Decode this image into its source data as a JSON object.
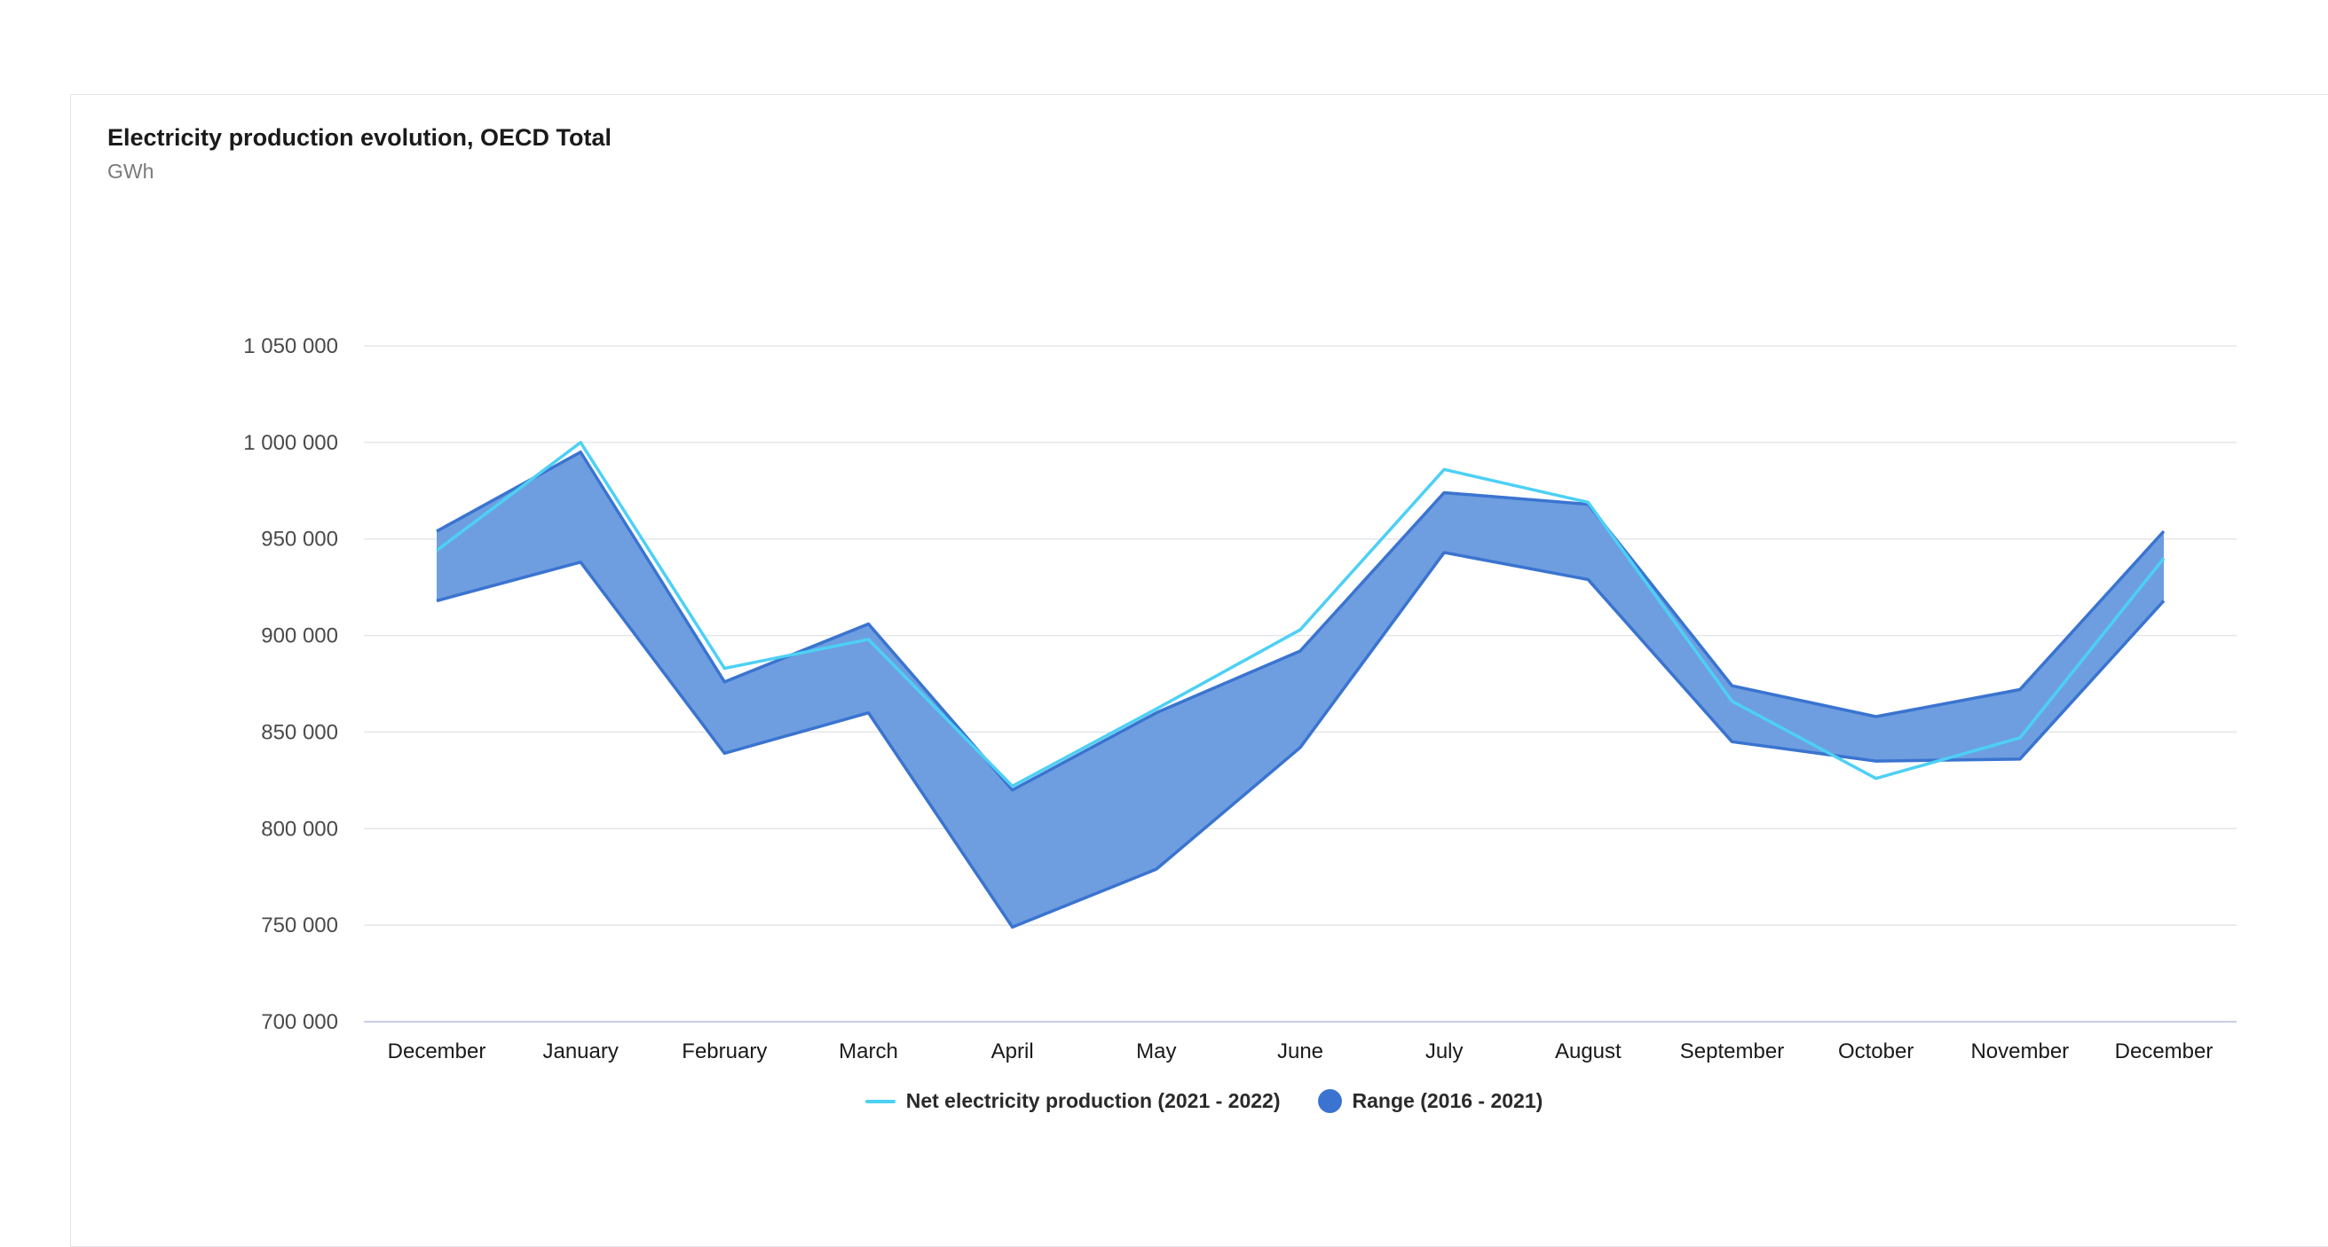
{
  "chart_data": {
    "type": "area",
    "title": "Electricity production evolution, OECD Total",
    "subtitle": "GWh",
    "xlabel": "",
    "ylabel": "",
    "categories": [
      "December",
      "January",
      "February",
      "March",
      "April",
      "May",
      "June",
      "July",
      "August",
      "September",
      "October",
      "November",
      "December"
    ],
    "ylim": [
      700000,
      1050000
    ],
    "yticks": [
      700000,
      750000,
      800000,
      850000,
      900000,
      950000,
      1000000,
      1050000
    ],
    "ytick_labels": [
      "700 000",
      "750 000",
      "800 000",
      "850 000",
      "900 000",
      "950 000",
      "1 000 000",
      "1 050 000"
    ],
    "grid": true,
    "legend_position": "bottom-center",
    "series": [
      {
        "name": "Net electricity production (2021 - 2022)",
        "kind": "line",
        "color": "#4dd0f5",
        "values": [
          944000,
          1000000,
          883000,
          898000,
          822000,
          862000,
          903000,
          986000,
          969000,
          866000,
          826000,
          847000,
          940000
        ]
      },
      {
        "name": "Range (2016 - 2021)",
        "kind": "range",
        "color": "#3a74d0",
        "fill": "#6e9ee0",
        "low": [
          918000,
          938000,
          839000,
          860000,
          749000,
          779000,
          842000,
          943000,
          929000,
          845000,
          835000,
          836000,
          918000
        ],
        "high": [
          954000,
          995000,
          876000,
          906000,
          820000,
          860000,
          892000,
          974000,
          968000,
          874000,
          858000,
          872000,
          954000
        ]
      }
    ]
  }
}
